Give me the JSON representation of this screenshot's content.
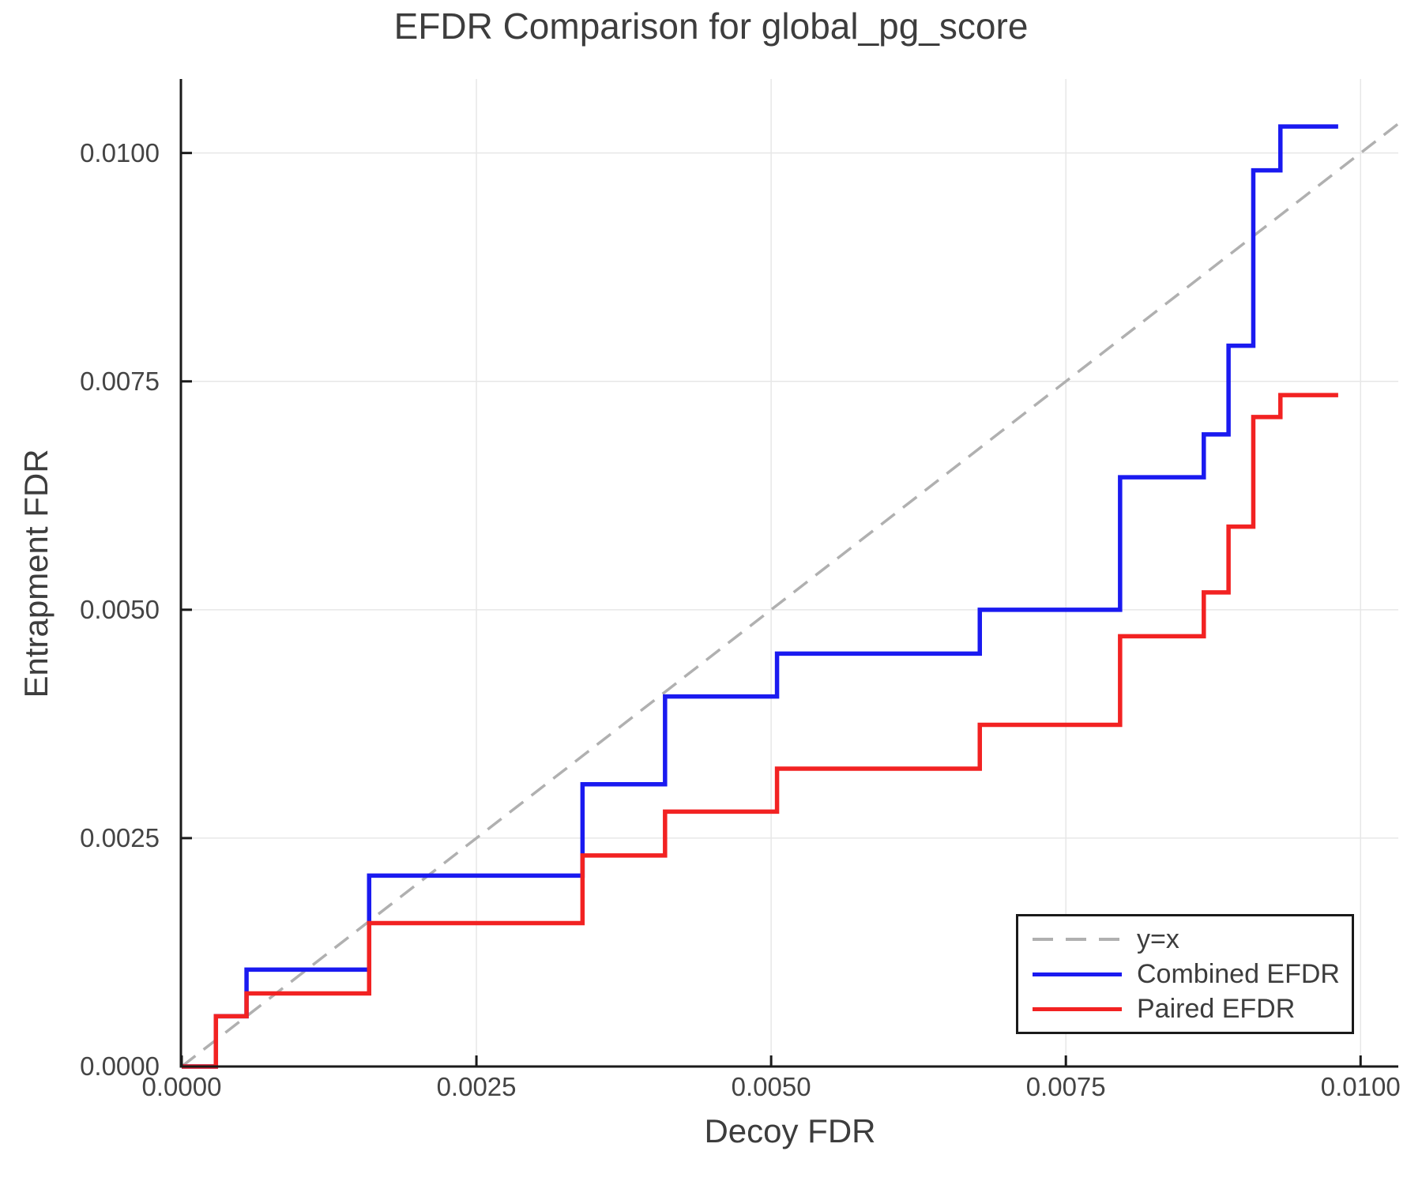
{
  "page": {
    "background": "#ffffff"
  },
  "chart_data": {
    "type": "line",
    "title": "EFDR Comparison for global_pg_score",
    "xlabel": "Decoy FDR",
    "ylabel": "Entrapment FDR",
    "xlim": [
      0,
      0.01032
    ],
    "ylim": [
      0,
      0.01081
    ],
    "grid": true,
    "legend_position": "lower right",
    "x_tick_values": [
      0,
      0.0025,
      0.005,
      0.0075,
      0.01
    ],
    "x_tick_labels": [
      "0.0000",
      "0.0025",
      "0.0050",
      "0.0075",
      "0.0100"
    ],
    "y_tick_values": [
      0,
      0.0025,
      0.005,
      0.0075,
      0.01
    ],
    "y_tick_labels": [
      "0.0000",
      "0.0025",
      "0.0050",
      "0.0075",
      "0.0100"
    ],
    "colors": {
      "grid": "#e7e7e7",
      "axis": "#1a1a1a",
      "text": "#3d3d3d"
    },
    "series": [
      {
        "name": "y=x",
        "type": "identity",
        "style": "dashed",
        "color": "#b0b0b0"
      },
      {
        "name": "Combined EFDR",
        "type": "step",
        "style": "solid",
        "color": "#1a1af0",
        "x_start": 0,
        "y_start": 0,
        "step_x": [
          0.00029,
          0.00055,
          0.00159,
          0.0034,
          0.0041,
          0.00505,
          0.00677,
          0.00796,
          0.00867,
          0.00888,
          0.00909,
          0.00932
        ],
        "step_y": [
          0.00055,
          0.00106,
          0.00209,
          0.00309,
          0.00405,
          0.00452,
          0.005,
          0.00645,
          0.00692,
          0.00789,
          0.00981,
          0.01029
        ],
        "x_end": 0.00981
      },
      {
        "name": "Paired EFDR",
        "type": "step",
        "style": "solid",
        "color": "#f22222",
        "x_start": 0,
        "y_start": 0,
        "step_x": [
          0.00029,
          0.00055,
          0.00159,
          0.0034,
          0.0041,
          0.00505,
          0.00677,
          0.00796,
          0.00867,
          0.00888,
          0.00909,
          0.00932
        ],
        "step_y": [
          0.00055,
          0.0008,
          0.00157,
          0.00231,
          0.00279,
          0.00326,
          0.00374,
          0.00471,
          0.00519,
          0.00591,
          0.00711,
          0.00735
        ],
        "x_end": 0.00981
      }
    ]
  }
}
